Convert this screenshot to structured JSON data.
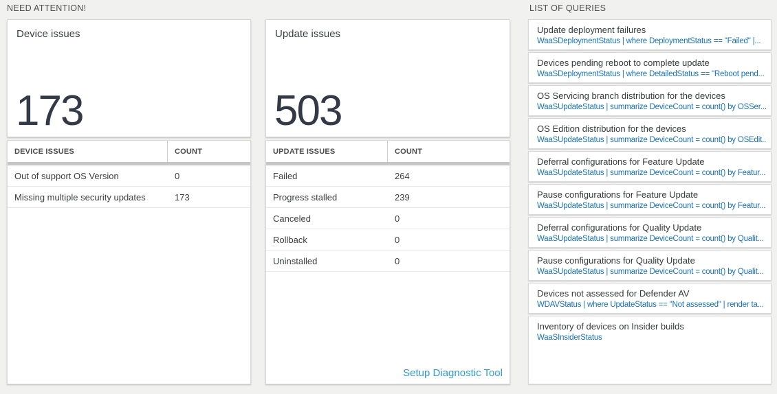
{
  "colors": {
    "page_bg": "#f1f1f0",
    "card_border": "#d9d9d9",
    "table_bar": "#c7c7c7",
    "big_number": "#333a45",
    "query_link": "#1673bb",
    "accent_link": "#2e9ad6"
  },
  "need_attention": {
    "header": "NEED ATTENTION!",
    "tiles": [
      {
        "title": "Device issues",
        "big_value": "173",
        "table": {
          "headers": {
            "label": "DEVICE ISSUES",
            "count": "COUNT"
          },
          "rows": [
            {
              "label": "Out of support OS Version",
              "count": "0"
            },
            {
              "label": "Missing multiple security updates",
              "count": "173"
            }
          ]
        }
      },
      {
        "title": "Update issues",
        "big_value": "503",
        "table": {
          "headers": {
            "label": "UPDATE ISSUES",
            "count": "COUNT"
          },
          "rows": [
            {
              "label": "Failed",
              "count": "264"
            },
            {
              "label": "Progress stalled",
              "count": "239"
            },
            {
              "label": "Canceled",
              "count": "0"
            },
            {
              "label": "Rollback",
              "count": "0"
            },
            {
              "label": "Uninstalled",
              "count": "0"
            }
          ]
        },
        "footer_link": "Setup Diagnostic Tool"
      }
    ]
  },
  "queries": {
    "header": "LIST OF QUERIES",
    "items": [
      {
        "title": "Update deployment failures",
        "query": "WaaSDeploymentStatus | where DeploymentStatus == \"Failed\" |..."
      },
      {
        "title": "Devices pending reboot to complete update",
        "query": "WaaSDeploymentStatus | where DetailedStatus == \"Reboot pend..."
      },
      {
        "title": "OS Servicing branch distribution for the devices",
        "query": "WaaSUpdateStatus | summarize DeviceCount = count() by OSSer..."
      },
      {
        "title": "OS Edition distribution for the devices",
        "query": "WaaSUpdateStatus | summarize DeviceCount = count() by OSEdit..."
      },
      {
        "title": "Deferral configurations for Feature Update",
        "query": "WaaSUpdateStatus | summarize DeviceCount = count() by Featur..."
      },
      {
        "title": "Pause configurations for Feature Update",
        "query": "WaaSUpdateStatus | summarize DeviceCount = count() by Featur..."
      },
      {
        "title": "Deferral configurations for Quality Update",
        "query": "WaaSUpdateStatus | summarize DeviceCount = count() by Qualit..."
      },
      {
        "title": "Pause configurations for Quality Update",
        "query": "WaaSUpdateStatus | summarize DeviceCount = count() by Qualit..."
      },
      {
        "title": "Devices not assessed for Defender AV",
        "query": "WDAVStatus | where UpdateStatus == \"Not assessed\" | render ta..."
      },
      {
        "title": "Inventory of devices on Insider builds",
        "query": "WaaSInsiderStatus"
      }
    ]
  }
}
